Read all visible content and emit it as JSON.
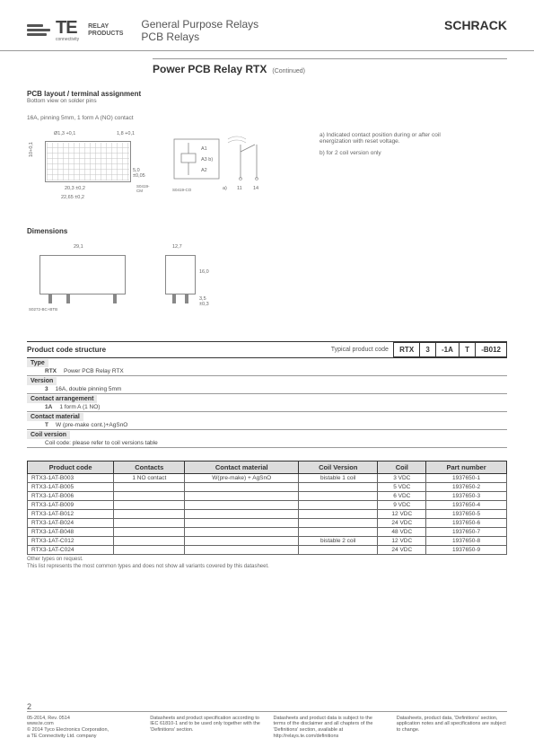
{
  "header": {
    "logo_text": "TE",
    "logo_sub": "connectivity",
    "logo_relay": "RELAY\nPRODUCTS",
    "title1": "General Purpose Relays",
    "title2": "PCB Relays",
    "brand": "SCHRACK"
  },
  "titlebar": {
    "main": "Power PCB Relay RTX",
    "cont": "(Continued)"
  },
  "pcb_section": {
    "heading": "PCB layout / terminal assignment",
    "sub": "Bottom view on solder pins",
    "variant": "16A, pinning 5mm, 1 form A (NO) contact",
    "dims": {
      "d1": "Ø1,3 +0,1",
      "d2": "1,8 +0,1",
      "d3": "10+0,1",
      "d4": "5,0 ±0,05",
      "d5": "20,3 ±0,2",
      "d6": "22,65 ±0,2",
      "ref1": "S0419-CM"
    },
    "circuit": {
      "a1": "A1",
      "a3": "A3 b)",
      "a2": "A2",
      "t11": "11",
      "t14": "14",
      "a_label": "a)",
      "ref2": "S0419-CO"
    },
    "notes": {
      "a": "a) Indicated contact position during or after coil energization with reset voltage.",
      "b": "b) for 2 coil version only"
    }
  },
  "dimensions": {
    "heading": "Dimensions",
    "w": "29,1",
    "d": "12,7",
    "h": "16,0",
    "standoff": "3,5 ±0,3",
    "ref": "S0272-BC+BTB"
  },
  "pcs": {
    "heading": "Product code structure",
    "typical": "Typical product code",
    "codes": [
      "RTX",
      "3",
      "-1A",
      "T",
      "-B012"
    ],
    "rows": [
      {
        "hdr": "Type",
        "key": "RTX",
        "val": "Power PCB Relay RTX"
      },
      {
        "hdr": "Version",
        "key": "3",
        "val": "16A, double pinning 5mm"
      },
      {
        "hdr": "Contact arrangement",
        "key": "1A",
        "val": "1 form A (1 NO)"
      },
      {
        "hdr": "Contact material",
        "key": "T",
        "val": "W (pre-make cont.)+AgSnO"
      },
      {
        "hdr": "Coil version",
        "key": "",
        "val": "Coil code: please refer to coil versions table"
      }
    ]
  },
  "table": {
    "columns": [
      "Product code",
      "Contacts",
      "Contact material",
      "Coil Version",
      "Coil",
      "Part number"
    ],
    "rows": [
      [
        "RTX3-1AT-B003",
        "1 NO contact",
        "W(pre-make) + AgSnO",
        "bistable 1 coil",
        "3 VDC",
        "1937650-1"
      ],
      [
        "RTX3-1AT-B005",
        "",
        "",
        "",
        "5 VDC",
        "1937650-2"
      ],
      [
        "RTX3-1AT-B006",
        "",
        "",
        "",
        "6 VDC",
        "1937650-3"
      ],
      [
        "RTX3-1AT-B009",
        "",
        "",
        "",
        "9 VDC",
        "1937650-4"
      ],
      [
        "RTX3-1AT-B012",
        "",
        "",
        "",
        "12 VDC",
        "1937650-5"
      ],
      [
        "RTX3-1AT-B024",
        "",
        "",
        "",
        "24 VDC",
        "1937650-6"
      ],
      [
        "RTX3-1AT-B048",
        "",
        "",
        "",
        "48 VDC",
        "1937650-7"
      ],
      [
        "RTX3-1AT-C012",
        "",
        "",
        "bistable 2 coil",
        "12 VDC",
        "1937650-8"
      ],
      [
        "RTX3-1AT-C024",
        "",
        "",
        "",
        "24 VDC",
        "1937650-9"
      ]
    ],
    "note1": "Other types on request.",
    "note2": "This list represents the most common types and does not show all variants covered by this datasheet."
  },
  "footer": {
    "page": "2",
    "col1": "05-2014, Rev. 0514\nwww.te.com\n© 2014 Tyco Electronics Corporation,\na TE Connectivity Ltd. company",
    "col2": "Datasheets and product specification according to IEC 61810-1 and to be used only together with the 'Definitions' section.",
    "col3": "Datasheets and product data is subject to the terms of the disclaimer and all chapters of the 'Definitions' section, available at http://relays.te.com/definitions",
    "col4": "Datasheets, product data, 'Definitions' section, application notes and all specifications are subject to change."
  },
  "colors": {
    "rule": "#999999",
    "text": "#333333",
    "muted": "#666666",
    "th_bg": "#dddddd",
    "row_hdr_bg": "#e8e8e8"
  }
}
